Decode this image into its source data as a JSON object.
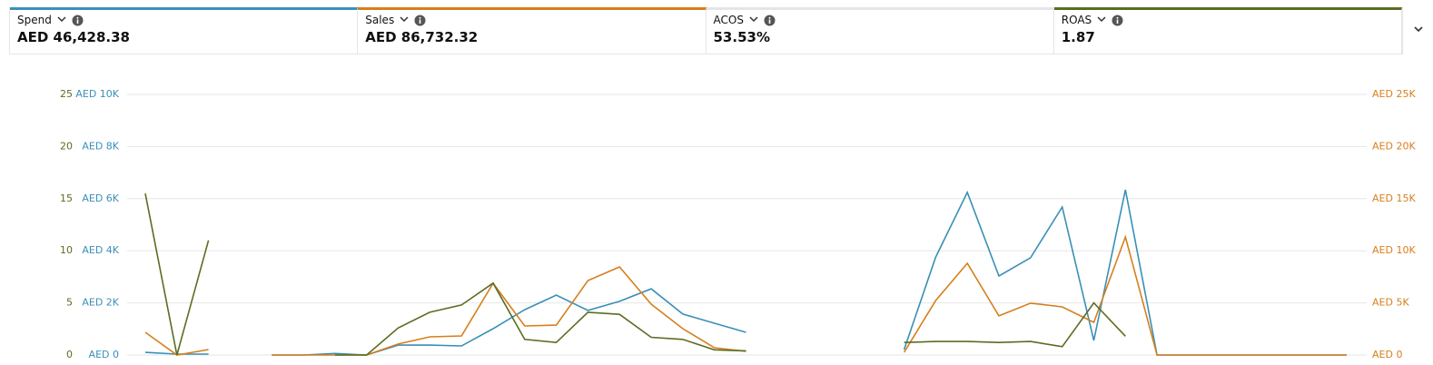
{
  "metrics": [
    {
      "label": "Spend",
      "value": "AED 46,428.38",
      "color": "#3a8fb7"
    },
    {
      "label": "Sales",
      "value": "AED 86,732.32",
      "color": "#d67f1c"
    },
    {
      "label": "ACOS",
      "value": "53.53%",
      "color": "#e3e6e6"
    },
    {
      "label": "ROAS",
      "value": "1.87",
      "color": "#5a6d21"
    }
  ],
  "chart_data": {
    "type": "line",
    "categories": [
      null,
      null,
      null,
      null,
      null,
      null,
      null,
      null,
      null,
      null,
      null,
      null,
      null,
      null,
      null,
      null,
      null,
      null,
      null,
      null,
      null,
      null,
      null,
      null,
      null,
      null,
      null,
      null,
      null,
      null,
      null,
      null,
      null,
      null,
      null,
      null,
      null,
      null,
      null
    ],
    "ylim": [
      0,
      25
    ],
    "yticks": [
      0,
      5,
      10,
      15,
      20,
      25
    ],
    "y3lim": [
      0,
      10000
    ],
    "y3ticks": [
      {
        "value": 0,
        "label": "AED 0"
      },
      {
        "value": 2000,
        "label": "AED 2K"
      },
      {
        "value": 4000,
        "label": "AED 4K"
      },
      {
        "value": 6000,
        "label": "AED 6K"
      },
      {
        "value": 8000,
        "label": "AED 8K"
      },
      {
        "value": 10000,
        "label": "AED 10K"
      }
    ],
    "y2lim": [
      0,
      25000
    ],
    "y2ticks": [
      {
        "value": 0,
        "label": "AED 0"
      },
      {
        "value": 5000,
        "label": "AED 5K"
      },
      {
        "value": 10000,
        "label": "AED 10K"
      },
      {
        "value": 15000,
        "label": "AED 15K"
      },
      {
        "value": 20000,
        "label": "AED 20K"
      },
      {
        "value": 25000,
        "label": "AED 25K"
      }
    ],
    "grid": true,
    "series": [
      {
        "name": "Spend",
        "color": "#3a8fb7",
        "axis": "y3",
        "values": [
          100,
          35,
          35,
          null,
          0,
          0,
          60,
          0,
          380,
          380,
          350,
          1010,
          1740,
          2300,
          1710,
          2060,
          2540,
          1570,
          1220,
          870,
          null,
          null,
          null,
          null,
          210,
          3760,
          6240,
          3030,
          3730,
          5680,
          560,
          6340,
          0,
          0,
          0,
          0,
          0,
          0,
          0
        ]
      },
      {
        "name": "Sales",
        "color": "#d67f1c",
        "axis": "y2",
        "values": [
          2180,
          0,
          520,
          null,
          0,
          0,
          0,
          0,
          1050,
          1740,
          1830,
          6880,
          2790,
          2870,
          7140,
          8450,
          4880,
          2530,
          700,
          350,
          null,
          null,
          null,
          null,
          260,
          5230,
          8800,
          3750,
          4970,
          4620,
          3140,
          11320,
          0,
          0,
          0,
          0,
          0,
          0,
          0
        ]
      },
      {
        "name": "ROAS",
        "color": "#5a6d21",
        "axis": "y",
        "values": [
          15.5,
          0,
          11.0,
          null,
          null,
          null,
          0,
          0,
          2.6,
          4.1,
          4.8,
          6.9,
          1.5,
          1.2,
          4.1,
          3.9,
          1.7,
          1.5,
          0.5,
          0.4,
          null,
          null,
          null,
          null,
          1.2,
          1.3,
          1.3,
          1.2,
          1.3,
          0.8,
          5.0,
          1.8,
          null,
          null,
          null,
          null,
          null,
          null,
          null
        ]
      }
    ]
  }
}
